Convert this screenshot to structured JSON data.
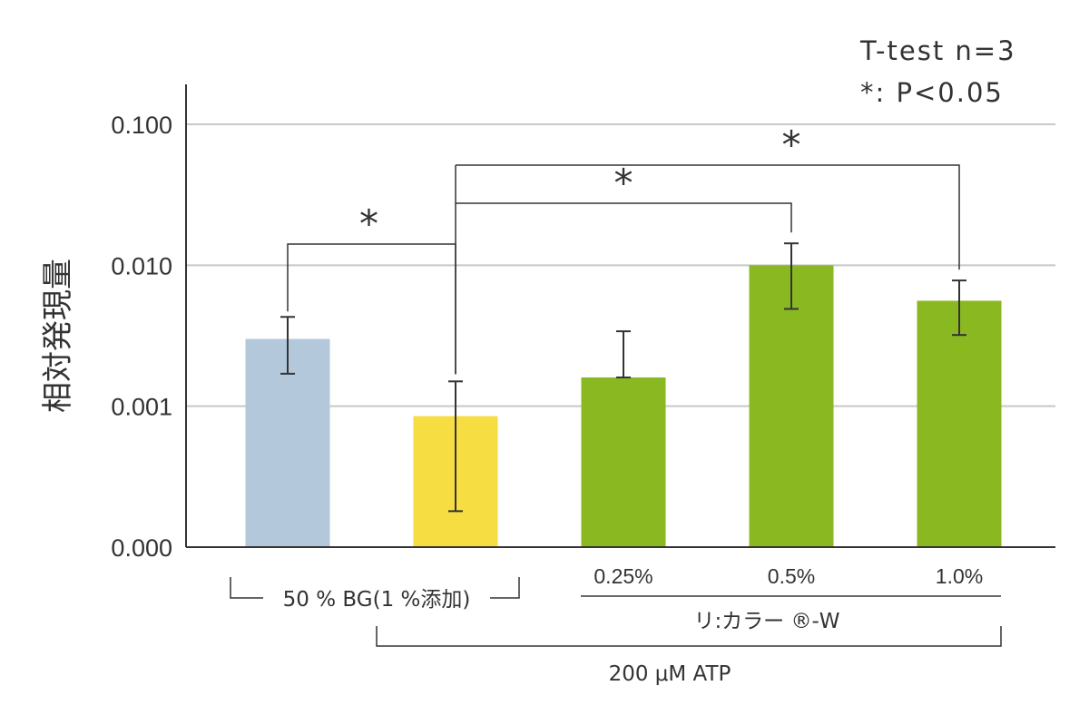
{
  "chart_data": {
    "type": "bar",
    "ylabel": "相対発現量",
    "ylim": [
      0.0001,
      0.1
    ],
    "y_scale": "log",
    "y_ticks": [
      {
        "value": 0.0001,
        "label": "0.000"
      },
      {
        "value": 0.001,
        "label": "0.001"
      },
      {
        "value": 0.01,
        "label": "0.010"
      },
      {
        "value": 0.1,
        "label": "0.100"
      }
    ],
    "grid": true,
    "bars": [
      {
        "category": "",
        "value": 0.003,
        "err_low": 0.0017,
        "err_high": 0.0043,
        "color": "#b3c8da"
      },
      {
        "category": "",
        "value": 0.00085,
        "err_low": 0.00018,
        "err_high": 0.0015,
        "color": "#f5dd42"
      },
      {
        "category": "0.25%",
        "value": 0.0016,
        "err_low": 0.0016,
        "err_high": 0.0034,
        "color": "#8ab820"
      },
      {
        "category": "0.5%",
        "value": 0.01,
        "err_low": 0.0049,
        "err_high": 0.0143,
        "color": "#8ab820"
      },
      {
        "category": "1.0%",
        "value": 0.0056,
        "err_low": 0.0032,
        "err_high": 0.0078,
        "color": "#8ab820"
      }
    ],
    "group_labels": {
      "bg": "50 % BG(1 %添加)",
      "product": "リ:カラー ®-W",
      "atp": "200 μM ATP"
    },
    "annotations": {
      "test": "T-test n=3",
      "significance": "*: P<0.05",
      "star": "*"
    },
    "significance_brackets": [
      {
        "from": 0,
        "to": 1,
        "label": "*"
      },
      {
        "from": 1,
        "to": 3,
        "label": "*"
      },
      {
        "from": 1,
        "to": 4,
        "label": "*"
      }
    ]
  }
}
